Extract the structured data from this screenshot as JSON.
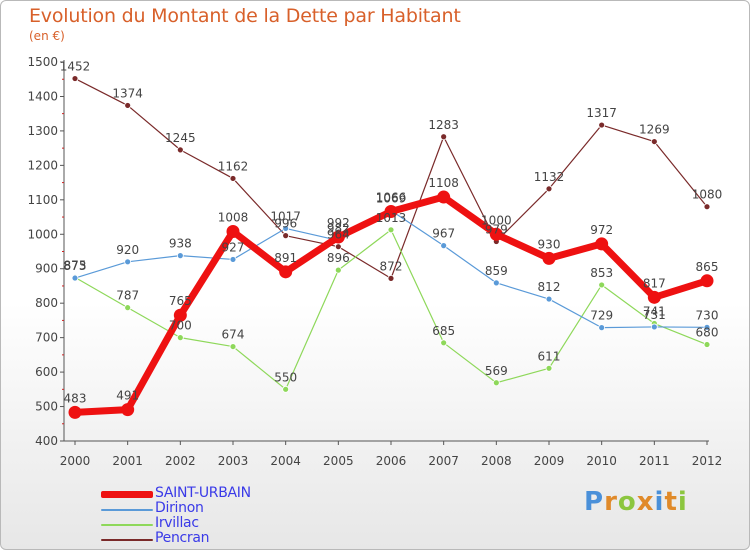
{
  "title": "Evolution du Montant de la Dette par Habitant",
  "subtitle": "(en €)",
  "logo": {
    "letters": [
      "P",
      "r",
      "o",
      "x",
      "i",
      "t",
      "i"
    ],
    "colors": [
      "#4a90d9",
      "#e08a2a",
      "#8cc63f",
      "#e08a2a",
      "#4a90d9",
      "#e08a2a",
      "#8cc63f"
    ]
  },
  "chart_data": {
    "type": "line",
    "title": "Evolution du Montant de la Dette par Habitant",
    "subtitle": "(en €)",
    "xlabel": "",
    "ylabel": "",
    "x": [
      "2000",
      "2001",
      "2002",
      "2003",
      "2004",
      "2005",
      "2006",
      "2007",
      "2008",
      "2009",
      "2010",
      "2011",
      "2012"
    ],
    "ylim": [
      400,
      1500
    ],
    "yticks": [
      400,
      500,
      600,
      700,
      800,
      900,
      1000,
      1100,
      1200,
      1300,
      1400,
      1500
    ],
    "grid": false,
    "legend_position": "bottom-left",
    "series": [
      {
        "name": "Pencran",
        "color": "#7a2a2a",
        "values": [
          1452,
          1374,
          1245,
          1162,
          996,
          964,
          872,
          1283,
          979,
          1132,
          1317,
          1269,
          1080
        ],
        "labels": [
          "1452",
          "1374",
          "1245",
          "1162",
          "996",
          "964",
          "872",
          "1283",
          "979",
          "1132",
          "1317",
          "1269",
          "1080"
        ]
      },
      {
        "name": "Irvillac",
        "color": "#8ed85a",
        "values": [
          875,
          787,
          700,
          674,
          550,
          896,
          1013,
          685,
          569,
          611,
          853,
          741,
          680
        ],
        "labels": [
          "875",
          "787",
          "700",
          "674",
          "550",
          "896",
          "1013",
          "685",
          "569",
          "611",
          "853",
          "741",
          "680"
        ]
      },
      {
        "name": "Dirinon",
        "color": "#5a9ad8",
        "values": [
          873,
          920,
          938,
          927,
          1017,
          982,
          1069,
          967,
          859,
          812,
          729,
          731,
          730
        ],
        "labels": [
          "873",
          "920",
          "938",
          "927",
          "1017",
          "982",
          "1069",
          "967",
          "859",
          "812",
          "729",
          "731",
          "730"
        ]
      },
      {
        "name": "SAINT-URBAIN",
        "color": "#ee1111",
        "values": [
          483,
          491,
          765,
          1008,
          891,
          992,
          1066,
          1108,
          1000,
          930,
          972,
          817,
          865
        ],
        "labels": [
          "483",
          "491",
          "765",
          "1008",
          "891",
          "992",
          "1066",
          "1108",
          "1000",
          "930",
          "972",
          "817",
          "865"
        ]
      }
    ],
    "legend": [
      "SAINT-URBAIN",
      "Dirinon",
      "Irvillac",
      "Pencran"
    ]
  }
}
